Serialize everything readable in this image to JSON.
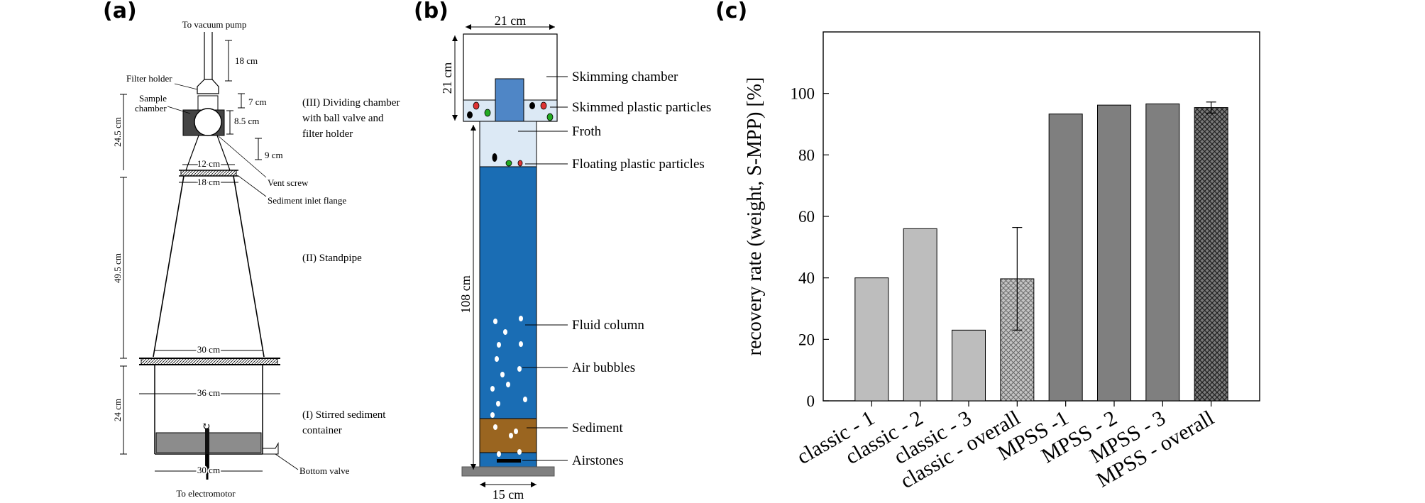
{
  "panels": {
    "a": {
      "label": "(a)",
      "labels": {
        "to_vacuum": "To vacuum pump",
        "filter_holder": "Filter holder",
        "sample": "Sample",
        "chamber": "chamber",
        "dividing_1": "(III) Dividing chamber",
        "dividing_2": "with ball valve and",
        "dividing_3": "filter holder",
        "vent_screw": "Vent screw",
        "inlet_flange": "Sediment inlet flange",
        "standpipe": "(II) Standpipe",
        "stirred_1": "(I) Stirred sediment",
        "stirred_2": "container",
        "bottom_valve": "Bottom valve",
        "electromotor": "To electromotor"
      },
      "dims": {
        "d18": "18 cm",
        "d7": "7 cm",
        "d8_5": "8.5 cm",
        "d9": "9 cm",
        "d12": "12 cm",
        "d18b": "18 cm",
        "d24_5": "24.5 cm",
        "d49_5": "49.5 cm",
        "d30": "30 cm",
        "d36": "36 cm",
        "d24": "24 cm",
        "d30b": "30 cm"
      }
    },
    "b": {
      "label": "(b)",
      "labels": {
        "skimming": "Skimming chamber",
        "skimmed": "Skimmed plastic particles",
        "froth": "Froth",
        "floating": "Floating plastic particles",
        "fluid": "Fluid column",
        "air": "Air bubbles",
        "sediment": "Sediment",
        "airstones": "Airstones"
      },
      "dims": {
        "top": "21 cm",
        "left_top": "21 cm",
        "height": "108 cm",
        "bottom": "15 cm"
      },
      "colors": {
        "water": "#1a6db4",
        "froth": "#dce9f5",
        "sediment": "#9a6520",
        "base": "#808080"
      }
    },
    "c": {
      "label": "(c)"
    }
  },
  "chart_data": {
    "type": "bar",
    "title": "",
    "xlabel": "",
    "ylabel": "recovery rate (weight, S-MPP) [%]",
    "ylim": [
      0,
      120
    ],
    "yticks": [
      0,
      20,
      40,
      60,
      80,
      100
    ],
    "categories": [
      "classic - 1",
      "classic - 2",
      "classic - 3",
      "classic - overall",
      "MPSS -1",
      "MPSS - 2",
      "MPSS - 3",
      "MPSS - overall"
    ],
    "values": [
      40,
      56,
      23,
      39.7,
      93.3,
      96.2,
      96.6,
      95.4
    ],
    "error_bars": [
      null,
      null,
      null,
      16.7,
      null,
      null,
      null,
      1.8
    ],
    "styles": [
      "light",
      "light",
      "light",
      "light-hatched",
      "dark",
      "dark",
      "dark",
      "dark-hatched"
    ],
    "colors": {
      "light": "#bdbdbd",
      "dark": "#7f7f7f"
    }
  }
}
